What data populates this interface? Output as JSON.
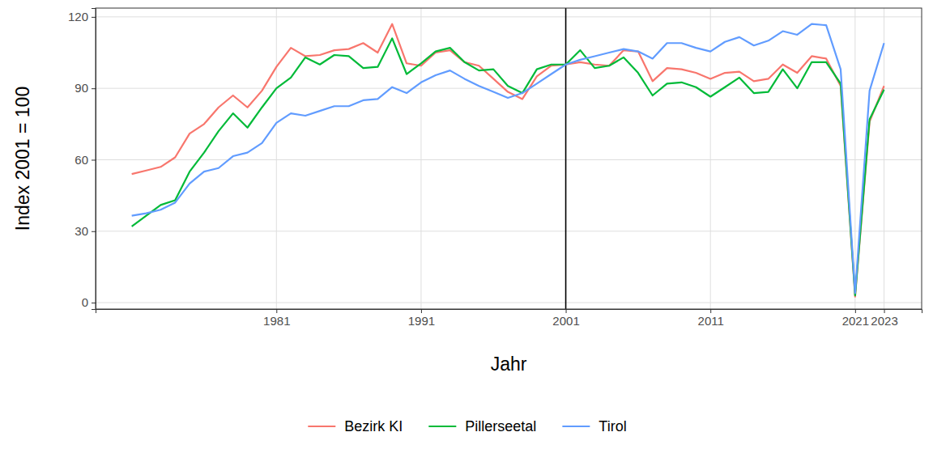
{
  "chart_data": {
    "type": "line",
    "x_label": "Jahr",
    "y_label": "Index 2001 = 100",
    "x": [
      1971,
      1972,
      1973,
      1974,
      1975,
      1976,
      1977,
      1978,
      1979,
      1980,
      1981,
      1982,
      1983,
      1984,
      1985,
      1986,
      1987,
      1988,
      1989,
      1990,
      1991,
      1992,
      1993,
      1994,
      1995,
      1996,
      1997,
      1998,
      1999,
      2000,
      2001,
      2002,
      2003,
      2004,
      2005,
      2006,
      2007,
      2008,
      2009,
      2010,
      2011,
      2012,
      2013,
      2014,
      2015,
      2016,
      2017,
      2018,
      2019,
      2020,
      2021,
      2022,
      2023
    ],
    "series": [
      {
        "name": "Bezirk KI",
        "color": "#F8766D",
        "values": [
          54,
          55.5,
          57,
          61,
          71,
          75,
          82,
          87,
          82,
          89,
          99,
          107,
          103.5,
          104,
          106,
          106.5,
          109,
          105,
          117,
          100.5,
          99.5,
          105,
          106,
          101,
          99.5,
          94,
          88.5,
          85.5,
          95,
          99.5,
          100,
          101,
          100,
          99.5,
          106,
          105.5,
          93,
          98.5,
          98,
          96.5,
          94,
          96.5,
          97,
          93,
          94,
          100,
          96.5,
          103.5,
          102.5,
          91,
          2.5,
          76,
          91
        ]
      },
      {
        "name": "Pillerseetal",
        "color": "#00BA38",
        "values": [
          32,
          36.5,
          41,
          43,
          55,
          63,
          72,
          79.5,
          73.5,
          82,
          90,
          94.5,
          103,
          100,
          104,
          103.5,
          98.5,
          99,
          111,
          96,
          100.5,
          105.5,
          107,
          101,
          97.5,
          98,
          91,
          88,
          98,
          100,
          100,
          106,
          98.5,
          99.5,
          103,
          96.5,
          87,
          92,
          92.5,
          90.5,
          86.5,
          90.5,
          94.5,
          88,
          88.5,
          98,
          90,
          101,
          101,
          92,
          3,
          77,
          89.5
        ]
      },
      {
        "name": "Tirol",
        "color": "#619CFF",
        "values": [
          36.5,
          37.5,
          39,
          42,
          50,
          55,
          56.5,
          61.5,
          63,
          67,
          75.5,
          79.5,
          78.5,
          80.5,
          82.5,
          82.5,
          85,
          85.5,
          90.5,
          88,
          92.5,
          95.5,
          97.5,
          94,
          91,
          88.5,
          86,
          88,
          92,
          96,
          100,
          102,
          103.5,
          105,
          106.5,
          105.5,
          102.5,
          109,
          109,
          107,
          105.5,
          109.5,
          111.5,
          108,
          110,
          114,
          112.5,
          117,
          116.5,
          98,
          4,
          89,
          109
        ]
      }
    ],
    "xlim": [
      1968.5,
      2025.6
    ],
    "ylim": [
      -2.7,
      123.7
    ],
    "xticks": [
      1981,
      1991,
      2001,
      2011,
      2021,
      2023
    ],
    "yticks": [
      0,
      30,
      60,
      90,
      120
    ],
    "vline": 2001,
    "grid": true,
    "legend": "bottom"
  }
}
